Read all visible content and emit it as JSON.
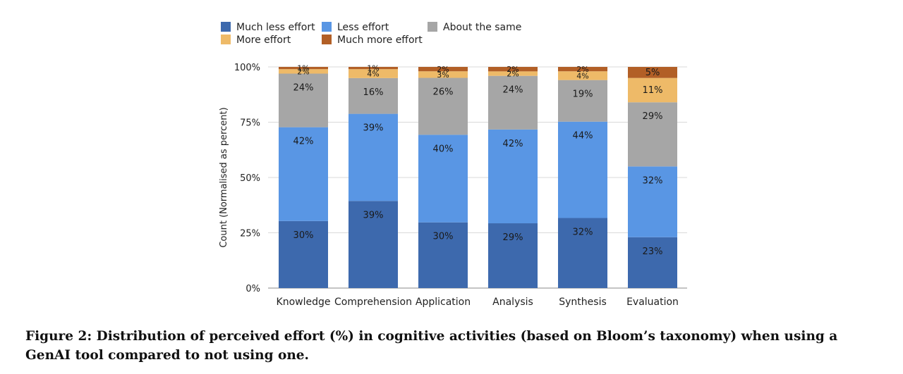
{
  "chart_data": {
    "type": "bar",
    "stacked": true,
    "normalized": true,
    "categories": [
      "Knowledge",
      "Comprehension",
      "Application",
      "Analysis",
      "Synthesis",
      "Evaluation"
    ],
    "series": [
      {
        "name": "Much less effort",
        "color": "#3d69ad",
        "values": [
          30,
          39,
          30,
          29,
          32,
          23
        ]
      },
      {
        "name": "Less effort",
        "color": "#5996e4",
        "values": [
          42,
          39,
          40,
          42,
          44,
          32
        ]
      },
      {
        "name": "About the same",
        "color": "#a6a6a6",
        "values": [
          24,
          16,
          26,
          24,
          19,
          29
        ]
      },
      {
        "name": "More effort",
        "color": "#eeba68",
        "values": [
          2,
          4,
          3,
          2,
          4,
          11
        ]
      },
      {
        "name": "Much more effort",
        "color": "#b25f26",
        "values": [
          1,
          1,
          2,
          2,
          2,
          5
        ]
      }
    ],
    "ylabel": "Count (Normalised as percent)",
    "xlabel": "",
    "ylim": [
      0,
      100
    ],
    "yticks": [
      "0%",
      "25%",
      "50%",
      "75%",
      "100%"
    ],
    "legend_position": "top",
    "grid": true
  },
  "caption": "Figure 2: Distribution of perceived effort (%) in cognitive activities (based on Bloom’s taxonomy) when using a GenAI tool compared to not using one."
}
